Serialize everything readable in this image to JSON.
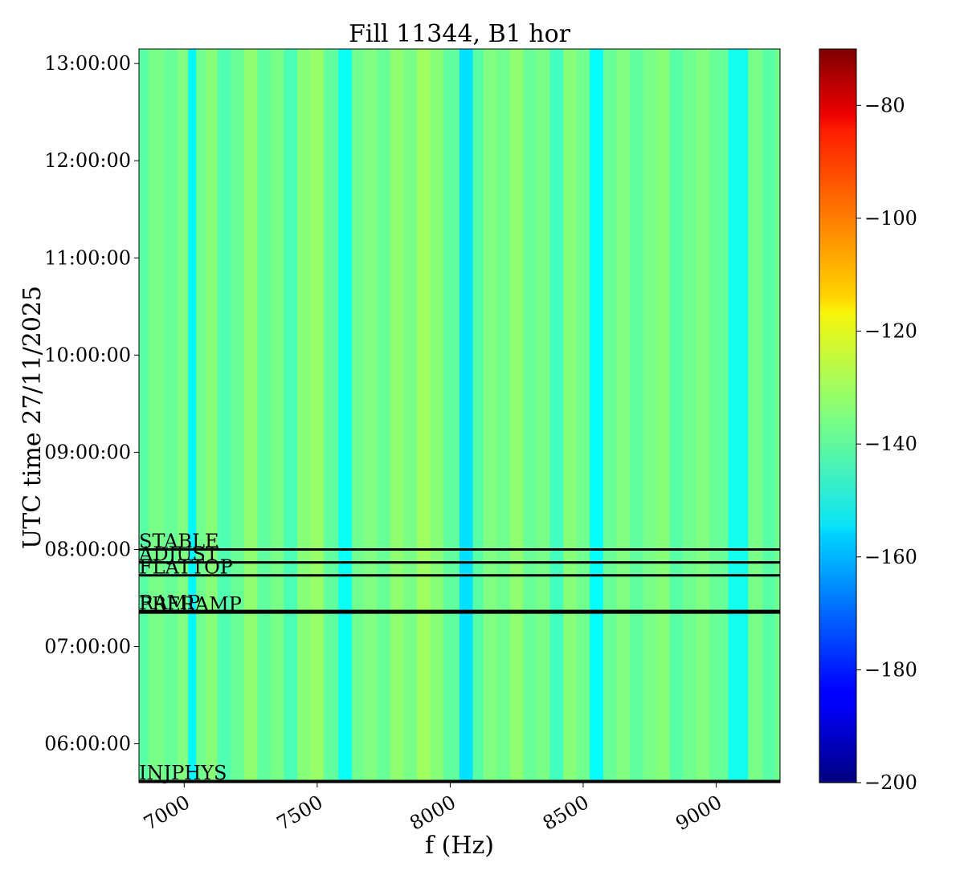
{
  "chart_data": {
    "type": "heatmap",
    "title": "Fill 11344, B1 hor",
    "xlabel": "f (Hz)",
    "ylabel": "UTC time 27/11/2025",
    "xlim": [
      6830,
      9240
    ],
    "ylim": [
      "05:36:00",
      "13:09:00"
    ],
    "x_ticks": [
      {
        "value": 7000,
        "label": "7000"
      },
      {
        "value": 7500,
        "label": "7500"
      },
      {
        "value": 8000,
        "label": "8000"
      },
      {
        "value": 8500,
        "label": "8500"
      },
      {
        "value": 9000,
        "label": "9000"
      }
    ],
    "y_ticks": [
      {
        "value": "06:00:00",
        "label": "06:00:00"
      },
      {
        "value": "07:00:00",
        "label": "07:00:00"
      },
      {
        "value": "08:00:00",
        "label": "08:00:00"
      },
      {
        "value": "09:00:00",
        "label": "09:00:00"
      },
      {
        "value": "10:00:00",
        "label": "10:00:00"
      },
      {
        "value": "11:00:00",
        "label": "11:00:00"
      },
      {
        "value": "12:00:00",
        "label": "12:00:00"
      },
      {
        "value": "13:00:00",
        "label": "13:00:00"
      }
    ],
    "colormap": "jet",
    "color_range": [
      -200,
      -70
    ],
    "colorbar_ticks": [
      -80,
      -100,
      -120,
      -140,
      -160,
      -180,
      -200
    ],
    "colorbar_labels": [
      "−80",
      "−100",
      "−120",
      "−140",
      "−160",
      "−180",
      "−200"
    ],
    "spectrum": [
      {
        "f": 6830,
        "v": -140
      },
      {
        "f": 6900,
        "v": -136
      },
      {
        "f": 6950,
        "v": -138
      },
      {
        "f": 7000,
        "v": -135
      },
      {
        "f": 7030,
        "v": -152
      },
      {
        "f": 7060,
        "v": -137
      },
      {
        "f": 7100,
        "v": -134
      },
      {
        "f": 7150,
        "v": -141
      },
      {
        "f": 7200,
        "v": -138
      },
      {
        "f": 7250,
        "v": -133
      },
      {
        "f": 7300,
        "v": -139
      },
      {
        "f": 7350,
        "v": -136
      },
      {
        "f": 7400,
        "v": -142
      },
      {
        "f": 7450,
        "v": -134
      },
      {
        "f": 7500,
        "v": -132
      },
      {
        "f": 7550,
        "v": -139
      },
      {
        "f": 7610,
        "v": -150
      },
      {
        "f": 7650,
        "v": -137
      },
      {
        "f": 7700,
        "v": -135
      },
      {
        "f": 7750,
        "v": -138
      },
      {
        "f": 7800,
        "v": -133
      },
      {
        "f": 7850,
        "v": -136
      },
      {
        "f": 7900,
        "v": -131
      },
      {
        "f": 7950,
        "v": -134
      },
      {
        "f": 8000,
        "v": -139
      },
      {
        "f": 8070,
        "v": -155
      },
      {
        "f": 8100,
        "v": -140
      },
      {
        "f": 8150,
        "v": -135
      },
      {
        "f": 8200,
        "v": -137
      },
      {
        "f": 8250,
        "v": -133
      },
      {
        "f": 8300,
        "v": -138
      },
      {
        "f": 8350,
        "v": -136
      },
      {
        "f": 8400,
        "v": -143
      },
      {
        "f": 8450,
        "v": -134
      },
      {
        "f": 8500,
        "v": -137
      },
      {
        "f": 8550,
        "v": -151
      },
      {
        "f": 8600,
        "v": -138
      },
      {
        "f": 8650,
        "v": -135
      },
      {
        "f": 8700,
        "v": -139
      },
      {
        "f": 8750,
        "v": -136
      },
      {
        "f": 8800,
        "v": -134
      },
      {
        "f": 8850,
        "v": -140
      },
      {
        "f": 8900,
        "v": -137
      },
      {
        "f": 8950,
        "v": -135
      },
      {
        "f": 9000,
        "v": -138
      },
      {
        "f": 9090,
        "v": -149
      },
      {
        "f": 9150,
        "v": -136
      },
      {
        "f": 9200,
        "v": -140
      },
      {
        "f": 9240,
        "v": -137
      }
    ],
    "events": [
      {
        "label": "STABLE",
        "time": "08:00:00"
      },
      {
        "label": "ADJUST",
        "time": "07:52:00"
      },
      {
        "label": "FLATTOP",
        "time": "07:44:00"
      },
      {
        "label": "RAMP",
        "time": "07:22:00"
      },
      {
        "label": "PRERAMP",
        "time": "07:21:00"
      },
      {
        "label": "INJPHYS",
        "time": "05:37:00"
      }
    ]
  }
}
